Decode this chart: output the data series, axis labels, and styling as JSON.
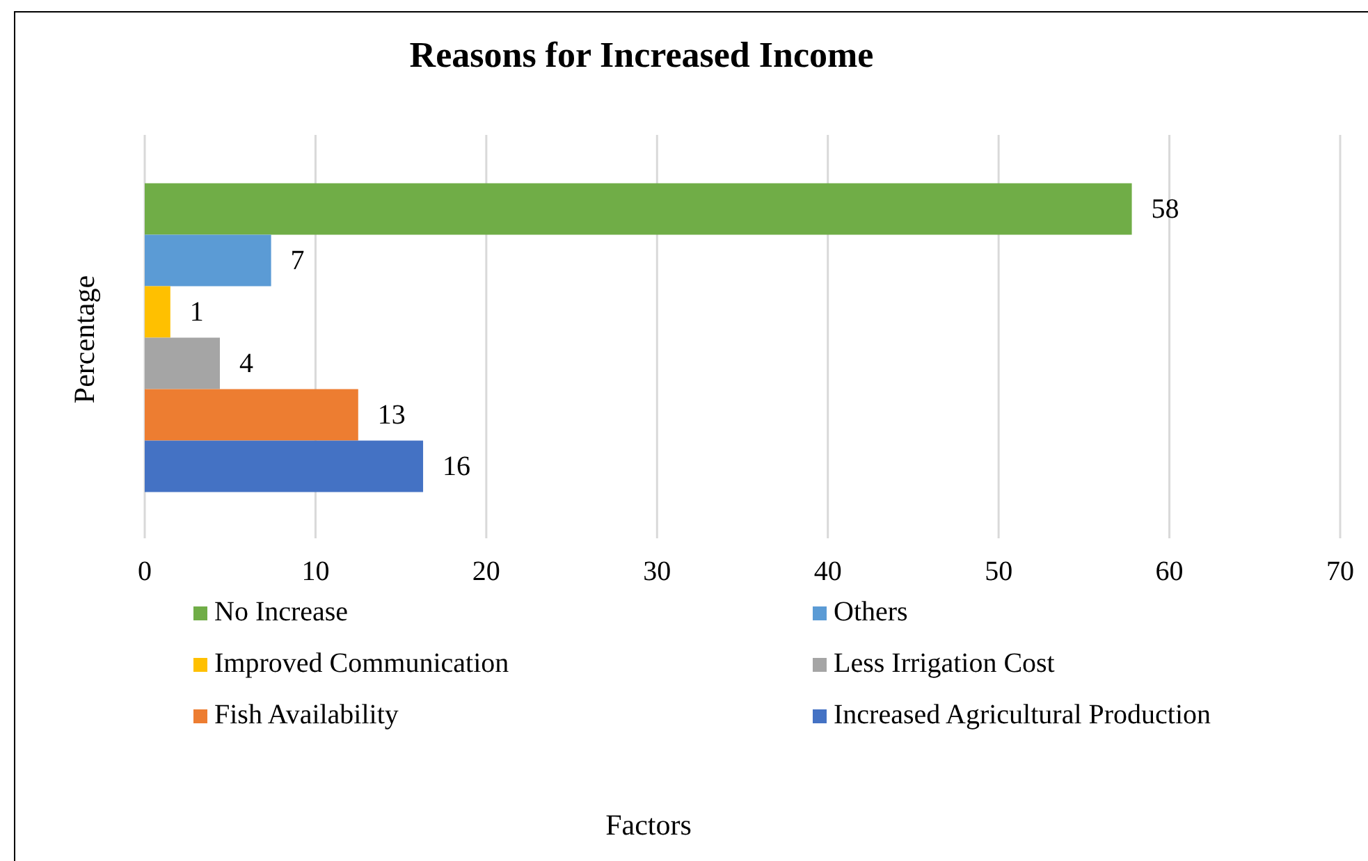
{
  "chart_data": {
    "type": "bar",
    "orientation": "horizontal",
    "title": "Reasons for Increased Income",
    "annotations": [
      "Factors"
    ],
    "ylabel": "Percentage",
    "categories": [
      null
    ],
    "series": [
      {
        "name": "No Increase",
        "color": "#70ad47",
        "values": [
          57.8
        ],
        "value_labels": [
          "58"
        ]
      },
      {
        "name": "Others",
        "color": "#5b9bd5",
        "values": [
          7.4
        ],
        "value_labels": [
          "7"
        ]
      },
      {
        "name": "Improved Communication",
        "color": "#ffc000",
        "values": [
          1.5
        ],
        "value_labels": [
          "1"
        ]
      },
      {
        "name": "Less Irrigation Cost",
        "color": "#a5a5a5",
        "values": [
          4.4
        ],
        "value_labels": [
          "4"
        ]
      },
      {
        "name": "Fish Availability",
        "color": "#ed7d31",
        "values": [
          12.5
        ],
        "value_labels": [
          "13"
        ]
      },
      {
        "name": "Increased Agricultural Production",
        "color": "#4472c4",
        "values": [
          16.3
        ],
        "value_labels": [
          "16"
        ]
      }
    ],
    "xlim": [
      0,
      70
    ],
    "xticks": [
      0,
      10,
      20,
      30,
      40,
      50,
      60,
      70
    ],
    "grid": "x",
    "legend": "bottom"
  }
}
